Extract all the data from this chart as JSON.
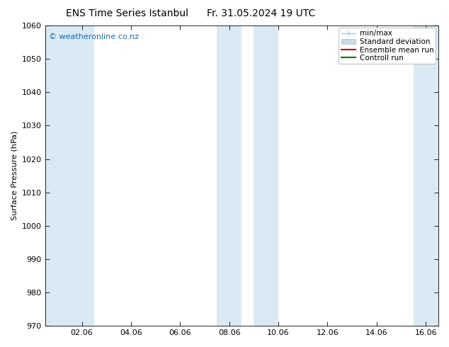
{
  "title": "ENS Time Series Istanbul",
  "title2": "Fr. 31.05.2024 19 UTC",
  "ylabel": "Surface Pressure (hPa)",
  "ylim": [
    970,
    1060
  ],
  "yticks": [
    970,
    980,
    990,
    1000,
    1010,
    1020,
    1030,
    1040,
    1050,
    1060
  ],
  "xlim": [
    0.5,
    16.5
  ],
  "xtick_labels": [
    "02.06",
    "04.06",
    "06.06",
    "08.06",
    "10.06",
    "12.06",
    "14.06",
    "16.06"
  ],
  "xtick_positions": [
    2,
    4,
    6,
    8,
    10,
    12,
    14,
    16
  ],
  "shaded_bands": [
    {
      "x_start": 0.5,
      "x_end": 2.5
    },
    {
      "x_start": 7.5,
      "x_end": 8.5
    },
    {
      "x_start": 9.0,
      "x_end": 10.0
    },
    {
      "x_start": 15.5,
      "x_end": 16.5
    }
  ],
  "band_color": "#daeaf5",
  "background_color": "#ffffff",
  "plot_bg_color": "#ffffff",
  "watermark": "© weatheronline.co.nz",
  "watermark_color": "#1a6aaa",
  "legend_items": [
    {
      "label": "min/max",
      "color": "#aaccdd",
      "type": "errorbar"
    },
    {
      "label": "Standard deviation",
      "color": "#c8dce8",
      "type": "fill"
    },
    {
      "label": "Ensemble mean run",
      "color": "#cc0000",
      "type": "line"
    },
    {
      "label": "Controll run",
      "color": "#007700",
      "type": "line"
    }
  ],
  "font_size_title": 10,
  "font_size_axis": 8,
  "font_size_tick": 8,
  "font_size_legend": 7.5,
  "font_size_watermark": 8
}
